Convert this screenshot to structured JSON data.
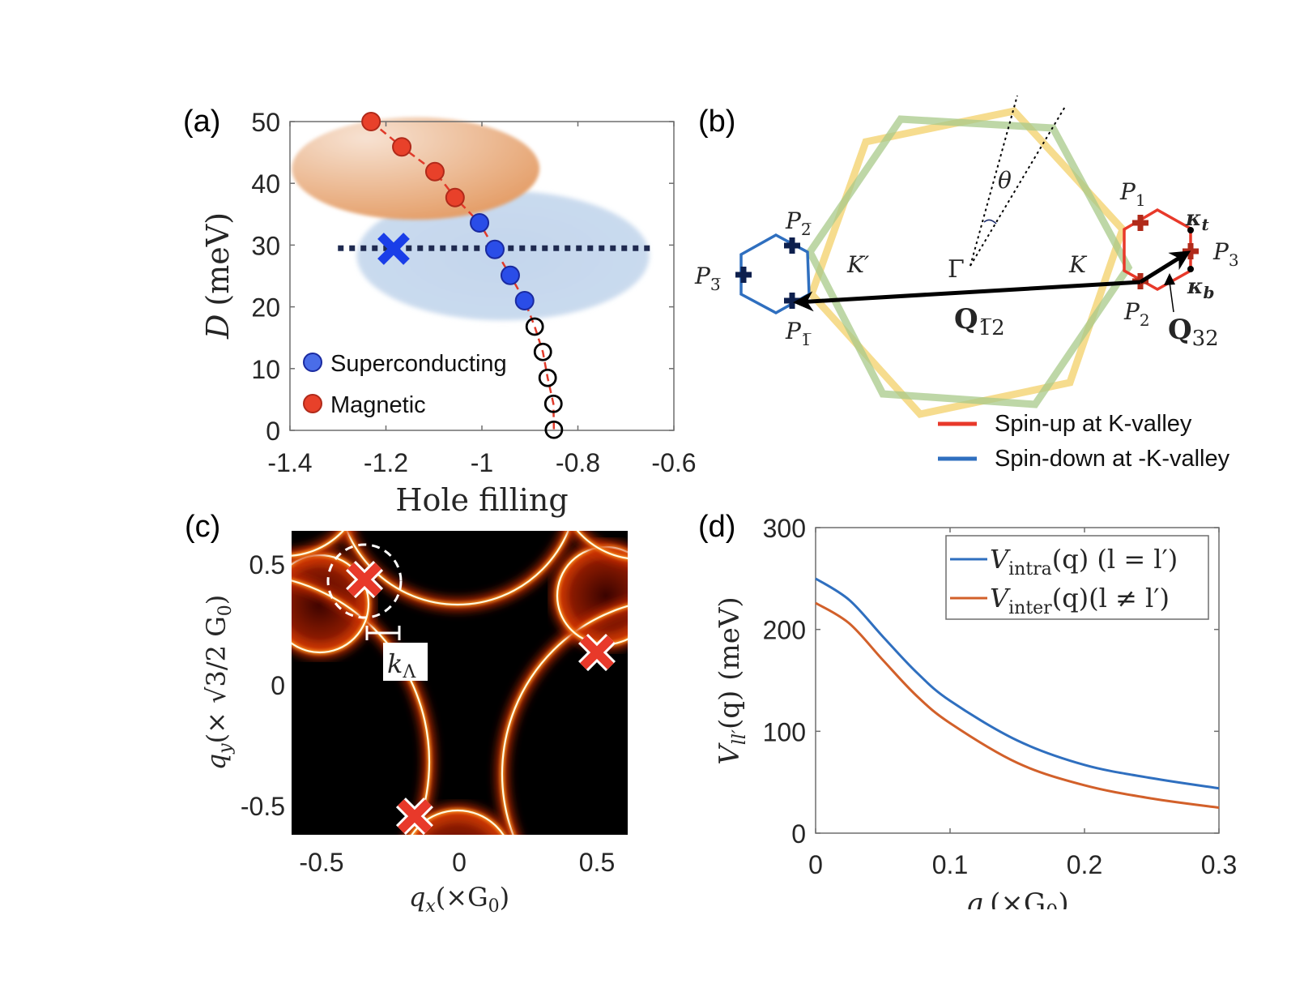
{
  "panels": {
    "a": "(a)",
    "b": "(b)",
    "c": "(c)",
    "d": "(d)"
  },
  "chart_data": [
    {
      "panel": "a",
      "type": "scatter",
      "xlabel": "Hole filling",
      "ylabel": {
        "symbol": "D",
        "unit": "(meV)"
      },
      "xlim": [
        -1.4,
        -0.6
      ],
      "ylim": [
        0,
        50
      ],
      "xticks": [
        "-1.4",
        "-1.2",
        "-1",
        "-0.8",
        "-0.6"
      ],
      "yticks": [
        "0",
        "10",
        "20",
        "30",
        "40",
        "50"
      ],
      "legend_placement": "bottom-left",
      "series": [
        {
          "name": "Magnetic",
          "color": "#e8412a",
          "marker": "filled-circle",
          "points": [
            [
              -1.231,
              50.0
            ],
            [
              -1.167,
              45.9
            ],
            [
              -1.098,
              41.9
            ],
            [
              -1.056,
              37.7
            ]
          ]
        },
        {
          "name": "Superconducting",
          "color": "#2a4de8",
          "marker": "filled-circle",
          "points": [
            [
              -1.005,
              33.6
            ],
            [
              -0.973,
              29.3
            ],
            [
              -0.941,
              25.1
            ],
            [
              -0.911,
              21.0
            ]
          ]
        },
        {
          "color": "#000000",
          "marker": "open-circle",
          "points": [
            [
              -0.89,
              16.8
            ],
            [
              -0.873,
              12.7
            ],
            [
              -0.863,
              8.5
            ],
            [
              -0.851,
              4.3
            ],
            [
              -0.85,
              0.1
            ]
          ]
        }
      ],
      "connecting_line": {
        "color": "#e03a2a",
        "style": "dashed"
      },
      "dotted_line": {
        "y": 29.5,
        "x": [
          -1.3,
          -0.65
        ],
        "color": "#1f2a50"
      },
      "cross_marker": {
        "x": -1.184,
        "y": 29.4,
        "color": "#1a3ee8"
      },
      "shaded_regions": [
        {
          "color": "#e8a070",
          "center": [
            -0.956,
            28.3
          ],
          "semi_axes": [
            0.305,
            10.5
          ],
          "region_color": "#c9d9ec"
        },
        {
          "color": "#e8a070",
          "center": [
            -1.138,
            42.4
          ],
          "semi_axes": [
            0.258,
            8.3
          ]
        }
      ]
    },
    {
      "panel": "c",
      "type": "heatmap",
      "colormap": "hot",
      "xlabel": {
        "symbol": "q",
        "sub": "x",
        "rest": "(×G",
        "sub2": "0",
        "close": ")"
      },
      "ylabel": {
        "symbol": "q",
        "sub": "y",
        "rest": "(× √3/2 G",
        "sub2": "0",
        "close": ")"
      },
      "xlim": [
        -0.61,
        0.61
      ],
      "ylim": [
        -0.62,
        0.63
      ],
      "xticks": [
        "-0.5",
        "0",
        "0.5"
      ],
      "yticks": [
        "-0.5",
        "0",
        "0.5"
      ],
      "markers": [
        [
          -0.344,
          0.436
        ],
        [
          0.5,
          0.134
        ],
        [
          -0.162,
          -0.544
        ]
      ],
      "marker_color": "#e8392a",
      "annotation": {
        "symbol": "k",
        "sub": "Λ"
      }
    },
    {
      "panel": "d",
      "type": "line",
      "xlabel": {
        "symbol": "q",
        "rest": "(×G",
        "sub": "0",
        "close": ")"
      },
      "ylabel": {
        "symbol": "V",
        "sub": "ll′",
        "rest": "(q)",
        "unit": "(meV)"
      },
      "xlim": [
        0,
        0.3
      ],
      "ylim": [
        0,
        300
      ],
      "xticks": [
        "0",
        "0.1",
        "0.2",
        "0.3"
      ],
      "yticks": [
        "0",
        "100",
        "200",
        "300"
      ],
      "legend_placement": "top-right",
      "x": [
        0,
        0.025,
        0.05,
        0.075,
        0.1,
        0.15,
        0.2,
        0.25,
        0.3
      ],
      "series": [
        {
          "name": {
            "symbol": "V",
            "sub": "intra",
            "rest": "(q) (l = l′)"
          },
          "color": "#2f6fbf",
          "values": [
            250,
            229,
            193,
            158,
            130,
            91,
            67,
            54,
            44
          ]
        },
        {
          "name": {
            "symbol": "V",
            "sub": "inter",
            "rest": "(q)(l ≠ l′)"
          },
          "color": "#d2602a",
          "values": [
            226,
            206,
            170,
            135,
            108,
            69,
            47,
            34,
            25
          ]
        }
      ]
    }
  ],
  "diagram_b": {
    "labels": {
      "gamma": "Γ",
      "k": "K",
      "k_prime": "K′",
      "theta": "θ",
      "p1": {
        "symbol": "P",
        "sub": "1"
      },
      "p2": {
        "symbol": "P",
        "sub": "2"
      },
      "p3": {
        "symbol": "P",
        "sub": "3"
      },
      "p1bar": {
        "symbol": "P",
        "sub": "1̅"
      },
      "p2bar": {
        "symbol": "P",
        "sub": "2̅"
      },
      "p3bar": {
        "symbol": "P",
        "sub": "3̅"
      },
      "kappa_t": {
        "symbol": "κ",
        "sub": "t"
      },
      "kappa_b": {
        "symbol": "κ",
        "sub": "b"
      },
      "q12": {
        "symbol": "Q",
        "sub": "1̅2"
      },
      "q32": {
        "symbol": "Q",
        "sub": "32"
      }
    },
    "colors": {
      "spin_up": "#e8392a",
      "spin_down": "#2f6fbf",
      "hex_yellow": "#f5d67a",
      "hex_green": "#a8c98a",
      "cross_up": "#b02a1a",
      "cross_down": "#0d1f4d"
    },
    "legend": [
      {
        "label": "Spin-up at K-valley",
        "color": "#e8392a"
      },
      {
        "label": "Spin-down at -K-valley",
        "color": "#2f6fbf"
      }
    ]
  }
}
